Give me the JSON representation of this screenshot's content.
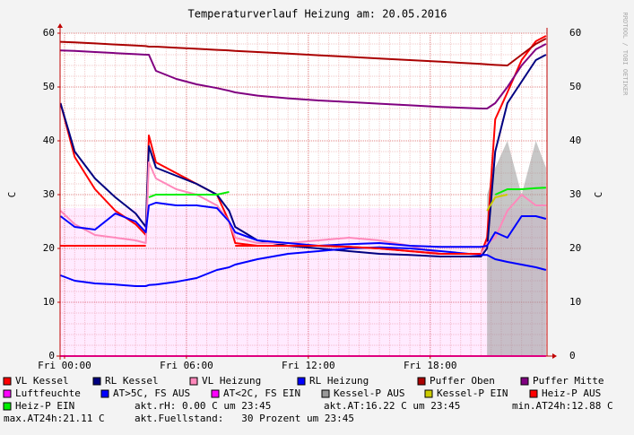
{
  "chart_data": {
    "type": "line",
    "title": "Temperaturverlauf Heizung am: 20.05.2016",
    "y_label": "C",
    "y2_label": "C",
    "watermark": "RRDTOOL / TOBI OETIKER",
    "x": [
      -0.2,
      0.5,
      1.5,
      2.5,
      3.5,
      4.0,
      4.15,
      4.5,
      5.5,
      6.5,
      7.5,
      8.1,
      8.4,
      9.5,
      11,
      12.5,
      14,
      15.5,
      17,
      18.5,
      20.5,
      20.8,
      21.2,
      21.8,
      22.5,
      23.2,
      23.7
    ],
    "xlim": [
      -0.22,
      23.75
    ],
    "xticks": [
      {
        "value": 0,
        "label": "Fri 00:00"
      },
      {
        "value": 6,
        "label": "Fri 06:00"
      },
      {
        "value": 12,
        "label": "Fri 12:00"
      },
      {
        "value": 18,
        "label": "Fri 18:00"
      }
    ],
    "ylim": [
      0,
      60
    ],
    "yticks": [
      0,
      10,
      20,
      30,
      40,
      50,
      60
    ],
    "grid": true,
    "series": [
      {
        "name": "VL Kessel",
        "color": "#ff0000",
        "values": [
          47,
          37,
          31,
          27,
          24.5,
          22.5,
          41,
          36,
          34,
          32,
          30,
          25,
          21,
          20.5,
          20.5,
          20.5,
          20.3,
          20,
          19.5,
          19,
          19,
          22,
          44,
          49,
          55,
          58.5,
          59.5
        ]
      },
      {
        "name": "RL Kessel",
        "color": "#000080",
        "values": [
          47,
          38,
          33,
          29.5,
          26.5,
          24,
          39,
          35,
          33.5,
          32,
          30,
          27,
          24,
          21.5,
          20.5,
          20,
          19.5,
          19,
          18.8,
          18.5,
          18.5,
          20,
          38,
          47,
          51,
          55,
          56
        ]
      },
      {
        "name": "VL Heizung",
        "color": "#ff88bb",
        "values": [
          27,
          24.5,
          22.5,
          22,
          21.5,
          21,
          36,
          33,
          31,
          30,
          28,
          25,
          22,
          21,
          21,
          21.5,
          22,
          21.5,
          20.5,
          19,
          19,
          21,
          22,
          27,
          30,
          28,
          28
        ]
      },
      {
        "name": "RL Heizung",
        "color": "#0000ff",
        "values": [
          26,
          24,
          23.5,
          26.5,
          25,
          23,
          28,
          28.5,
          28,
          28,
          27.5,
          25,
          23,
          21.5,
          21,
          20.5,
          20.8,
          21,
          20.5,
          20.3,
          20.3,
          20.5,
          23,
          22,
          26,
          26,
          25.5
        ]
      },
      {
        "name": "Puffer Oben",
        "color": "#aa0000",
        "values": [
          58.4,
          58.3,
          58.1,
          57.9,
          57.7,
          57.6,
          57.5,
          57.5,
          57.3,
          57.1,
          56.9,
          56.8,
          56.7,
          56.5,
          56.2,
          55.9,
          55.6,
          55.3,
          55,
          54.7,
          54.3,
          54.2,
          54.1,
          54,
          56,
          58,
          59
        ]
      },
      {
        "name": "Puffer Mitte",
        "color": "#800080",
        "values": [
          56.8,
          56.7,
          56.5,
          56.3,
          56.1,
          56,
          56,
          53,
          51.5,
          50.5,
          49.8,
          49.3,
          49,
          48.4,
          47.9,
          47.5,
          47.2,
          46.9,
          46.6,
          46.3,
          46,
          46,
          47,
          50,
          54,
          57,
          58
        ]
      },
      {
        "name": "Luftfeuchte",
        "color": "#ff00ff",
        "values": [
          0,
          0,
          0,
          0,
          0,
          0,
          0,
          0,
          0,
          0,
          0,
          0,
          0,
          0,
          0,
          0,
          0,
          0,
          0,
          0,
          0,
          0,
          0,
          0,
          0,
          0,
          0
        ]
      },
      {
        "name": "AT>5C, FS AUS",
        "color": "#0000ff",
        "values": [
          15,
          14,
          13.5,
          13.3,
          13,
          13,
          13.2,
          13.3,
          13.8,
          14.5,
          16,
          16.5,
          17,
          18,
          19,
          19.5,
          20,
          20.2,
          20,
          19.5,
          18.8,
          18.8,
          18,
          17.5,
          17,
          16.5,
          16
        ]
      },
      {
        "name": "AT<2C, FS EIN",
        "color": "#ff00ff",
        "style": "area",
        "values": [
          27.5,
          27.5,
          27.5,
          27.5,
          27.5,
          27.5,
          27.5,
          27.5,
          27.5,
          27.5,
          27.5,
          27.5,
          27.5,
          27.5,
          27.5,
          27.5,
          27.5,
          27.5,
          27.5,
          27.5,
          27.5,
          27.5,
          27.5,
          27.5,
          27.5,
          27.5,
          27.5
        ]
      },
      {
        "name": "Kessel-P AUS",
        "color": "#999999",
        "style": "area",
        "values": [
          null,
          null,
          null,
          null,
          null,
          null,
          null,
          null,
          null,
          null,
          null,
          null,
          null,
          null,
          null,
          null,
          null,
          null,
          null,
          null,
          null,
          30,
          35,
          40,
          30,
          40,
          35
        ]
      },
      {
        "name": "Kessel-P EIN",
        "color": "#cccc00",
        "values": [
          null,
          null,
          null,
          null,
          null,
          null,
          null,
          null,
          null,
          null,
          null,
          null,
          null,
          null,
          null,
          null,
          null,
          null,
          null,
          null,
          null,
          27,
          29.5,
          30,
          null,
          null,
          null
        ]
      },
      {
        "name": "Heiz-P AUS",
        "color": "#ff0000",
        "values": [
          20.5,
          20.5,
          20.5,
          20.5,
          20.5,
          20.5,
          null,
          null,
          null,
          null,
          null,
          null,
          20.5,
          20.5,
          20.5,
          20.5,
          20.3,
          20,
          19.5,
          19,
          19,
          null,
          null,
          null,
          null,
          null,
          null
        ]
      },
      {
        "name": "Heiz-P EIN",
        "color": "#00ee00",
        "values": [
          null,
          null,
          null,
          null,
          null,
          null,
          29.5,
          30,
          30,
          30,
          30,
          30.5,
          null,
          null,
          null,
          null,
          null,
          null,
          null,
          null,
          null,
          null,
          30,
          31,
          31,
          31.2,
          31.3
        ]
      }
    ],
    "annotations": [
      "akt.rH: 0.00 C um 23:45",
      "akt.AT:16.22 C um 23:45",
      "min.AT24h:12.88 C",
      "max.AT24h:21.11 C",
      "akt.Fuellstand:   30 Prozent um 23:45"
    ]
  }
}
